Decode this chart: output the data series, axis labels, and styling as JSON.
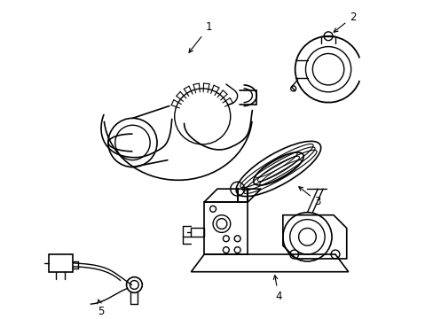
{
  "background_color": "#ffffff",
  "line_color": "#000000",
  "line_width": 1.0,
  "fig_width": 4.89,
  "fig_height": 3.6,
  "dpi": 100
}
